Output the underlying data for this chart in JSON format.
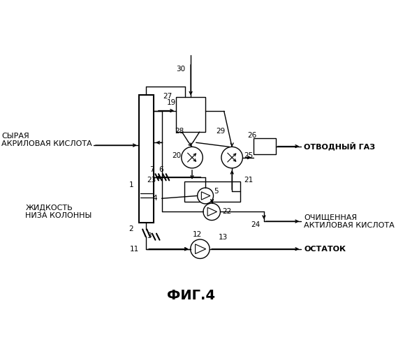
{
  "title": "ФИГ.4",
  "bg_color": "#ffffff",
  "line_color": "#000000",
  "fig_width": 5.67,
  "fig_height": 5.0,
  "labels": {
    "cyraya": "СЫРАЯ\nАКРИЛОВАЯ КИСЛОТА",
    "zhidkost": "ЖИДКОСТЬ\nНИЗА КОЛОННЫ",
    "otvodny": "ОТВОДНЫЙ ГАЗ",
    "ochishennaya": "ОЧИЩЕННАЯ\nАКТИЛОВАЯ КИСЛОТА",
    "ostatok": "ОСТАТОК"
  }
}
